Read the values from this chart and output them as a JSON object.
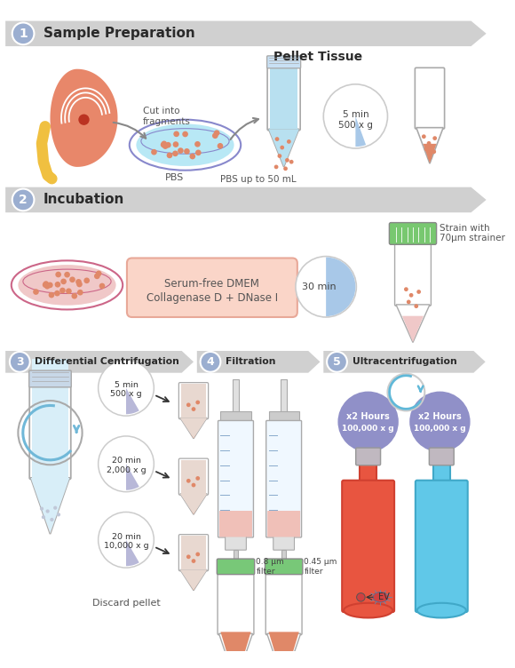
{
  "bg_color": "#ffffff",
  "banner_color": "#d0d0d0",
  "step_circle_color": "#9baed0",
  "section_labels": [
    "Sample Preparation",
    "Incubation",
    "Differential Centrifugation",
    "Filtration",
    "Ultracentrifugation"
  ],
  "kidney_color": "#e8876a",
  "ureter_color": "#f0c040",
  "dish_fill_blue": "#b8e8f5",
  "dish_border_blue": "#8888cc",
  "dish_fill_pink": "#f0c8c8",
  "dish_border_pink": "#cc6688",
  "fragment_color": "#e08868",
  "tube_fill": "#b8e0f0",
  "pellet_color": "#e08868",
  "pellet_small_color": "#f0c8c8",
  "incubation_box_fill": "#fad5c8",
  "incubation_box_border": "#e8a898",
  "pie_blue": "#a8c8e8",
  "pie_purple": "#b8b8d8",
  "centrifuge_tube_red": "#e85540",
  "centrifuge_tube_blue": "#60c8e8",
  "bottle_cap_color": "#c0c0c8",
  "filter_green": "#78c878",
  "syringe_barrel_fill": "#f0f8ff",
  "blue_circle_color": "#9090c8"
}
